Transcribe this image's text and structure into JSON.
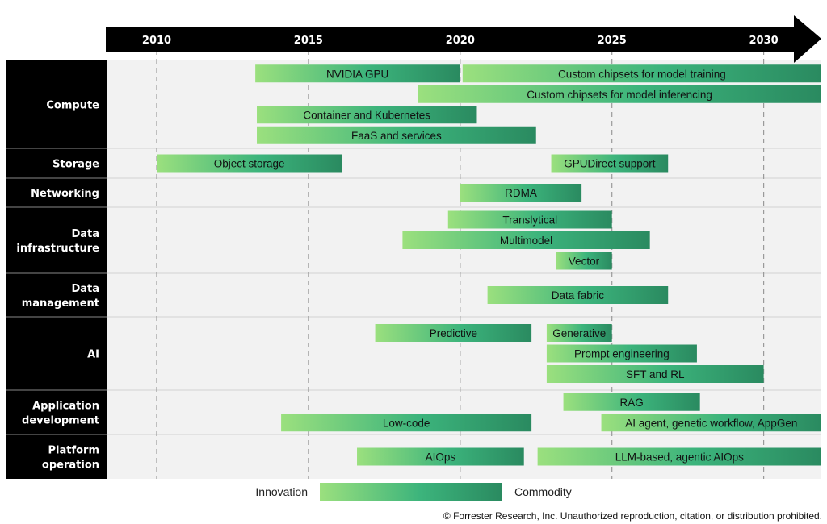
{
  "chart_data": {
    "type": "timeline",
    "title": "",
    "x_axis": {
      "ticks": [
        2010,
        2015,
        2020,
        2025,
        2030
      ],
      "range": [
        2008.35,
        2031.9
      ],
      "grid": "dashed"
    },
    "categories": [
      {
        "name": "Compute",
        "lines": [
          "Compute"
        ],
        "lanes": 4
      },
      {
        "name": "Storage",
        "lines": [
          "Storage"
        ],
        "lanes": 1
      },
      {
        "name": "Networking",
        "lines": [
          "Networking"
        ],
        "lanes": 1
      },
      {
        "name": "Data infrastructure",
        "lines": [
          "Data",
          "infrastructure"
        ],
        "lanes": 3
      },
      {
        "name": "Data management",
        "lines": [
          "Data",
          "management"
        ],
        "lanes": 1
      },
      {
        "name": "AI",
        "lines": [
          "AI"
        ],
        "lanes": 3
      },
      {
        "name": "Application development",
        "lines": [
          "Application",
          "development"
        ],
        "lanes": 2
      },
      {
        "name": "Platform operation",
        "lines": [
          "Platform",
          "operation"
        ],
        "lanes": 1
      }
    ],
    "bars": [
      {
        "category": "Compute",
        "lane": 0,
        "label": "NVIDIA GPU",
        "start": 2013.25,
        "end": 2019.98
      },
      {
        "category": "Compute",
        "lane": 0,
        "label": "Custom chipsets for model training",
        "start": 2020.08,
        "end": 2031.9
      },
      {
        "category": "Compute",
        "lane": 1,
        "label": "Custom chipsets for model inferencing",
        "start": 2018.6,
        "end": 2031.9
      },
      {
        "category": "Compute",
        "lane": 2,
        "label": "Container and Kubernetes",
        "start": 2013.3,
        "end": 2020.55
      },
      {
        "category": "Compute",
        "lane": 3,
        "label": "FaaS and services",
        "start": 2013.3,
        "end": 2022.5
      },
      {
        "category": "Storage",
        "lane": 0,
        "label": "Object storage",
        "start": 2010.0,
        "end": 2016.1
      },
      {
        "category": "Storage",
        "lane": 0,
        "label": "GPUDirect support",
        "start": 2023.0,
        "end": 2026.85
      },
      {
        "category": "Networking",
        "lane": 0,
        "label": "RDMA",
        "start": 2020.0,
        "end": 2024.0
      },
      {
        "category": "Data infrastructure",
        "lane": 0,
        "label": "Translytical",
        "start": 2019.6,
        "end": 2025.0
      },
      {
        "category": "Data infrastructure",
        "lane": 1,
        "label": "Multimodel",
        "start": 2018.1,
        "end": 2026.25
      },
      {
        "category": "Data infrastructure",
        "lane": 2,
        "label": "Vector",
        "start": 2023.15,
        "end": 2025.0
      },
      {
        "category": "Data management",
        "lane": 0,
        "label": "Data fabric",
        "start": 2020.9,
        "end": 2026.85
      },
      {
        "category": "AI",
        "lane": 0,
        "label": "Predictive",
        "start": 2017.2,
        "end": 2022.35
      },
      {
        "category": "AI",
        "lane": 0,
        "label": "Generative",
        "start": 2022.85,
        "end": 2025.0
      },
      {
        "category": "AI",
        "lane": 1,
        "label": "Prompt engineering",
        "start": 2022.85,
        "end": 2027.8
      },
      {
        "category": "AI",
        "lane": 2,
        "label": "SFT and RL",
        "start": 2022.85,
        "end": 2030.0
      },
      {
        "category": "Application development",
        "lane": 0,
        "label": "RAG",
        "start": 2023.4,
        "end": 2027.9
      },
      {
        "category": "Application development",
        "lane": 1,
        "label": "Low-code",
        "start": 2014.1,
        "end": 2022.35
      },
      {
        "category": "Application development",
        "lane": 1,
        "label": "AI agent, genetic workflow, AppGen",
        "start": 2024.65,
        "end": 2031.9
      },
      {
        "category": "Platform operation",
        "lane": 0,
        "label": "AIOps",
        "start": 2016.6,
        "end": 2022.1
      },
      {
        "category": "Platform operation",
        "lane": 0,
        "label": "LLM-based, agentic AIOps",
        "start": 2022.55,
        "end": 2031.9
      }
    ],
    "legend": {
      "left_label": "Innovation",
      "right_label": "Commodity",
      "placement": "bottom-center"
    },
    "colors": {
      "gradient_start": "#9be07e",
      "gradient_mid": "#3cb47c",
      "gradient_end": "#2a8a60",
      "header": "#000000",
      "plot_bg": "#f2f2f2",
      "grid": "#9a9a9a"
    }
  },
  "footer": {
    "copyright": "© Forrester Research, Inc. Unauthorized reproduction, citation, or distribution prohibited."
  }
}
